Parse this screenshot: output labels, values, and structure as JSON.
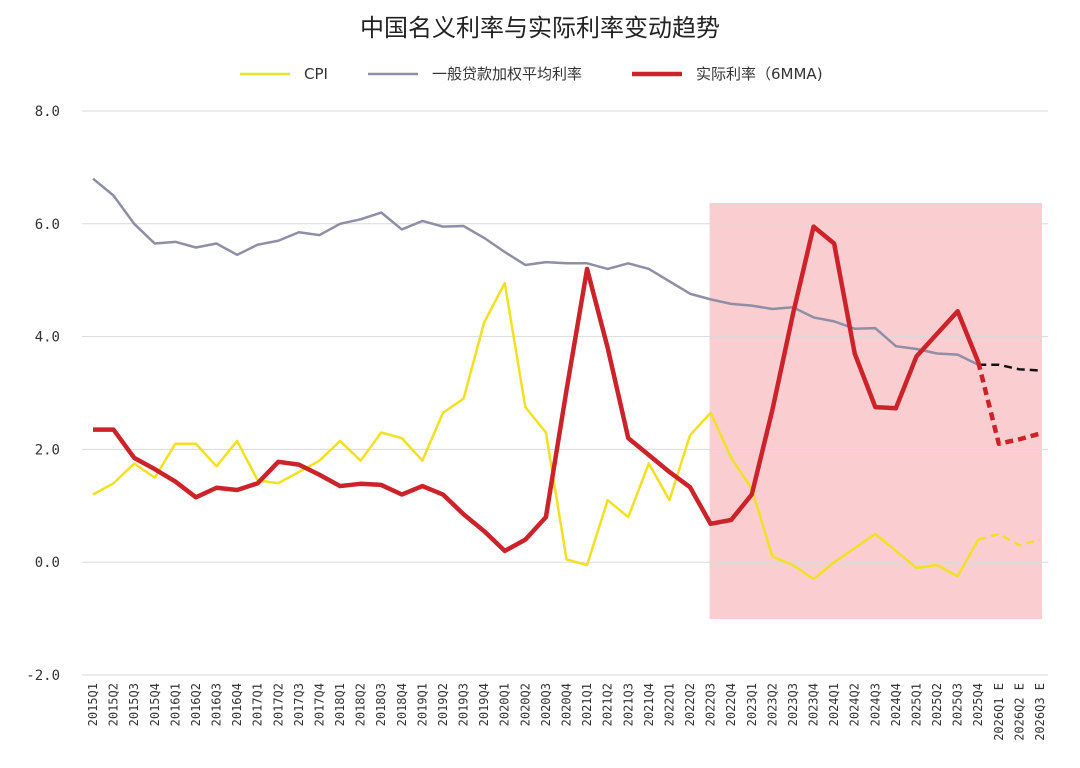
{
  "chart_data": {
    "type": "line",
    "title": "中国名义利率与实际利率变动趋势",
    "ylim": [
      -2.0,
      8.0
    ],
    "y_ticks": [
      "8.0",
      "6.0",
      "4.0",
      "2.0",
      "0.0",
      "-2.0"
    ],
    "grid": true,
    "legend_position": "top",
    "shaded_region": {
      "from": "2022Q3",
      "to": "2026Q3 E",
      "color": "#f9c9cb"
    },
    "categories": [
      "2015Q1",
      "2015Q2",
      "2015Q3",
      "2015Q4",
      "2016Q1",
      "2016Q2",
      "2016Q3",
      "2016Q4",
      "2017Q1",
      "2017Q2",
      "2017Q3",
      "2017Q4",
      "2018Q1",
      "2018Q2",
      "2018Q3",
      "2018Q4",
      "2019Q1",
      "2019Q2",
      "2019Q3",
      "2019Q4",
      "2020Q1",
      "2020Q2",
      "2020Q3",
      "2020Q4",
      "2021Q1",
      "2021Q2",
      "2021Q3",
      "2021Q4",
      "2022Q1",
      "2022Q2",
      "2022Q3",
      "2022Q4",
      "2023Q1",
      "2023Q2",
      "2023Q3",
      "2023Q4",
      "2024Q1",
      "2024Q2",
      "2024Q3",
      "2024Q4",
      "2025Q1",
      "2025Q2",
      "2025Q3",
      "2025Q4",
      "2026Q1 E",
      "2026Q2 E",
      "2026Q3 E"
    ],
    "forecast_from_index": 43,
    "series": [
      {
        "name": "CPI",
        "color": "#f2e022",
        "forecast_color": "#f2e022",
        "width": 2.5,
        "values": [
          1.2,
          1.4,
          1.75,
          1.5,
          2.1,
          2.1,
          1.7,
          2.15,
          1.45,
          1.4,
          1.6,
          1.8,
          2.15,
          1.8,
          2.3,
          2.2,
          1.8,
          2.65,
          2.9,
          4.25,
          4.95,
          2.75,
          2.3,
          0.05,
          -0.05,
          1.1,
          0.8,
          1.75,
          1.1,
          2.25,
          2.65,
          1.85,
          1.3,
          0.1,
          -0.05,
          -0.3,
          0.0,
          0.25,
          0.5,
          0.2,
          -0.1,
          -0.05,
          -0.25,
          0.4,
          0.5,
          0.3,
          0.4
        ]
      },
      {
        "name": "一般贷款加权平均利率",
        "color": "#8e8ea6",
        "forecast_color": "#111111",
        "width": 2.5,
        "values": [
          6.8,
          6.5,
          6.0,
          5.65,
          5.68,
          5.58,
          5.65,
          5.45,
          5.63,
          5.7,
          5.85,
          5.8,
          6.0,
          6.08,
          6.2,
          5.9,
          6.05,
          5.95,
          5.96,
          5.75,
          5.5,
          5.27,
          5.32,
          5.3,
          5.3,
          5.2,
          5.3,
          5.2,
          4.98,
          4.76,
          4.66,
          4.58,
          4.55,
          4.49,
          4.52,
          4.34,
          4.27,
          4.14,
          4.15,
          3.83,
          3.78,
          3.7,
          3.68,
          3.5,
          3.5,
          3.42,
          3.4
        ]
      },
      {
        "name": "实际利率（6MMA)",
        "color": "#cc2229",
        "forecast_color": "#cc2229",
        "width": 4.5,
        "values": [
          2.35,
          2.35,
          1.85,
          1.65,
          1.43,
          1.15,
          1.32,
          1.28,
          1.4,
          1.78,
          1.73,
          1.55,
          1.35,
          1.39,
          1.37,
          1.2,
          1.35,
          1.2,
          0.85,
          0.55,
          0.2,
          0.4,
          0.8,
          3.05,
          5.2,
          3.8,
          2.2,
          1.9,
          1.6,
          1.33,
          0.68,
          0.75,
          1.2,
          2.7,
          4.4,
          5.95,
          5.65,
          3.7,
          2.75,
          2.73,
          3.65,
          4.05,
          4.45,
          3.55,
          2.1,
          2.18,
          2.28
        ]
      }
    ]
  }
}
